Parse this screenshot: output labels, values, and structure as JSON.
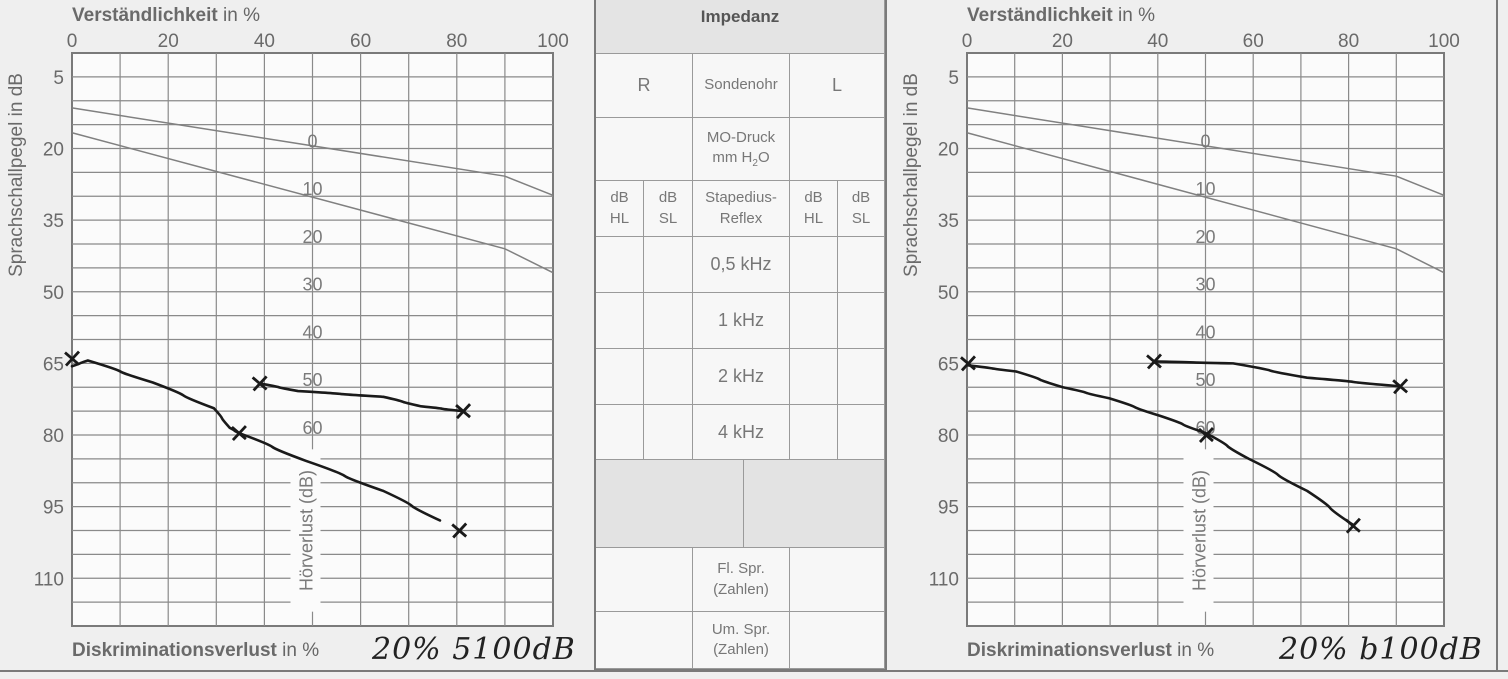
{
  "chart_data": [
    {
      "type": "line",
      "side": "right-ear",
      "title": "Verständlichkeit",
      "title_unit": "in %",
      "ylabel": "Sprachschallpegel in dB",
      "xlabel_bold": "Diskriminationsverlust",
      "xlabel_unit": "in %",
      "xlim": [
        0,
        100
      ],
      "ylim": [
        0,
        120
      ],
      "x_ticks": [
        "0",
        "20",
        "40",
        "60",
        "80",
        "100"
      ],
      "y_ticks": [
        "5",
        "20",
        "35",
        "50",
        "65",
        "80",
        "95",
        "110"
      ],
      "grid": true,
      "secondary_axis_label": "Hörverlust (dB)",
      "secondary_ticks": [
        "0",
        "10",
        "20",
        "30",
        "40",
        "50",
        "60"
      ],
      "reference_curves": [
        {
          "name": "Zahlen (norm)",
          "x": [
            0,
            90,
            100
          ],
          "y": [
            11.5,
            25.8,
            29.8
          ]
        },
        {
          "name": "Einsilber (norm)",
          "x": [
            0,
            90,
            100
          ],
          "y": [
            16.7,
            41,
            46
          ]
        }
      ],
      "series": [
        {
          "name": "Einsilber",
          "x": [
            0,
            3.3,
            16.8,
            29.5,
            32.8,
            34.7,
            48.6,
            64.7,
            76.5
          ],
          "y": [
            65.6,
            64.4,
            69,
            74.4,
            78.5,
            79.6,
            85.4,
            91.7,
            97.9
          ],
          "markers": [
            [
              0,
              64
            ],
            [
              34.7,
              79.6
            ],
            [
              80.5,
              100
            ]
          ]
        },
        {
          "name": "Zahlen",
          "x": [
            39,
            47,
            64.7,
            72.6,
            81.3
          ],
          "y": [
            69.2,
            70.8,
            72,
            74,
            75
          ],
          "markers": [
            [
              39,
              69.2
            ],
            [
              81.3,
              75
            ]
          ]
        }
      ],
      "handwritten_note": "20% 5100dB"
    },
    {
      "type": "line",
      "side": "left-ear",
      "title": "Verständlichkeit",
      "title_unit": "in %",
      "ylabel": "Sprachschallpegel in dB",
      "xlabel_bold": "Diskriminationsverlust",
      "xlabel_unit": "in %",
      "xlim": [
        0,
        100
      ],
      "ylim": [
        0,
        120
      ],
      "x_ticks": [
        "0",
        "20",
        "40",
        "60",
        "80",
        "100"
      ],
      "y_ticks": [
        "5",
        "20",
        "35",
        "50",
        "65",
        "80",
        "95",
        "110"
      ],
      "grid": true,
      "secondary_axis_label": "Hörverlust (dB)",
      "secondary_ticks": [
        "0",
        "10",
        "20",
        "30",
        "40",
        "50",
        "60"
      ],
      "reference_curves": [
        {
          "name": "Zahlen (norm)",
          "x": [
            0,
            90,
            100
          ],
          "y": [
            11.5,
            25.8,
            29.8
          ]
        },
        {
          "name": "Einsilber (norm)",
          "x": [
            0,
            90,
            100
          ],
          "y": [
            16.7,
            41,
            46
          ]
        }
      ],
      "series": [
        {
          "name": "Einsilber",
          "x": [
            0.2,
            10.3,
            20.1,
            29.8,
            40.5,
            50.1,
            59.1,
            71.3,
            80.9
          ],
          "y": [
            65.4,
            66.7,
            70,
            72.3,
            76,
            79.6,
            85,
            91.7,
            98.8
          ],
          "markers": [
            [
              0.2,
              65
            ],
            [
              50.1,
              80
            ],
            [
              80.9,
              99
            ]
          ]
        },
        {
          "name": "Zahlen",
          "x": [
            39.2,
            55.8,
            71.3,
            90.8
          ],
          "y": [
            64.6,
            65,
            68,
            69.8
          ],
          "markers": [
            [
              39.2,
              64.6
            ],
            [
              90.8,
              69.8
            ]
          ]
        }
      ],
      "handwritten_note": "20% b100dB"
    }
  ],
  "impedance": {
    "title": "Impedanz",
    "r": "R",
    "probe_ear": "Sondenohr",
    "l": "L",
    "mo_pressure": "MO-Druck",
    "mm_h": "mm H",
    "sub2": "2",
    "o": "O",
    "db_hl": "dB HL",
    "db_sl": "dB SL",
    "stapedius": "Stapedius-Reflex",
    "freqs": [
      "0,5 kHz",
      "1 kHz",
      "2 kHz",
      "4 kHz"
    ],
    "fl_spr": "Fl. Spr. (Zahlen)",
    "um_spr": "Um. Spr. (Zahlen)"
  },
  "colors": {
    "grid": "#8a8a8a",
    "ink": "#1a1a1a",
    "reference": "#808080",
    "plot_bg": "#fbfbfb"
  }
}
